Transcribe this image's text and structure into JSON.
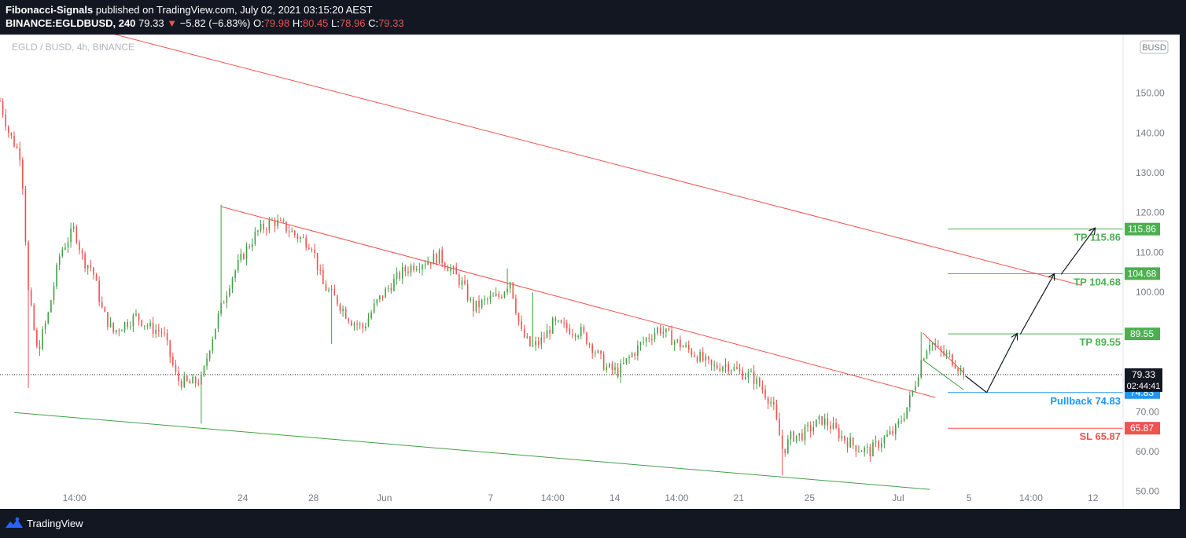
{
  "header": {
    "author": "Fibonacci-Signals",
    "published_text": "published on TradingView.com, July 02, 2021 03:15:20 AEST",
    "symbol": "BINANCE:EGLDBUSD, 240",
    "last": "79.33",
    "change_arrow": "▼",
    "change": "−5.82 (−6.83%)",
    "o_label": "O:",
    "o_value": "79.98",
    "h_label": "H:",
    "h_value": "80.45",
    "l_label": "L:",
    "l_value": "78.96",
    "c_label": "C:",
    "c_value": "79.33"
  },
  "footer": {
    "brand": "TradingView"
  },
  "chart_data": {
    "type": "candlestick",
    "title": "EGLD / BUSD, 4h, BINANCE",
    "currency_badge": "BUSD",
    "y_ticks": [
      "150.00",
      "140.00",
      "130.00",
      "120.00",
      "110.00",
      "100.00",
      "70.00",
      "60.00",
      "50.00"
    ],
    "y_tick_values": [
      150,
      140,
      130,
      120,
      110,
      100,
      70,
      60,
      50
    ],
    "ylim": [
      45.6,
      164.7
    ],
    "x_ticks": [
      "14:00",
      "24",
      "28",
      "Jun",
      "7",
      "14:00",
      "14",
      "14:00",
      "21",
      "25",
      "Jul",
      "5",
      "14:00",
      "12"
    ],
    "x_tick_pos": [
      14,
      23.5,
      27.5,
      31.5,
      37.5,
      41,
      44.5,
      48,
      51.5,
      55.5,
      60.5,
      64.5,
      68,
      71.5
    ],
    "x_range": [
      9.8,
      73.2
    ],
    "current_price": {
      "label": "79.33",
      "countdown": "02:44:41",
      "value": 79.33
    },
    "levels": [
      {
        "name": "TP 115.86",
        "value": 115.86,
        "badge": "115.86",
        "color": "#4caf50"
      },
      {
        "name": "TP 104.68",
        "value": 104.68,
        "badge": "104.68",
        "color": "#4caf50"
      },
      {
        "name": "TP 89.55",
        "value": 89.55,
        "badge": "89.55",
        "color": "#4caf50"
      },
      {
        "name": "Pullback 74.83",
        "value": 74.83,
        "badge": "74.83",
        "color": "#2196f3"
      },
      {
        "name": "SL 65.87",
        "value": 65.87,
        "badge": "65.87",
        "color": "#ef5350"
      }
    ],
    "up_color": "#26a69a",
    "up_color_chart": "#43a047",
    "down_color": "#ef5350",
    "series": [
      {
        "name": "EGLD/BUSD",
        "anchors": [
          [
            9.8,
            148
          ],
          [
            10.3,
            140
          ],
          [
            11.0,
            134
          ],
          [
            11.4,
            100
          ],
          [
            11.9,
            85
          ],
          [
            12.5,
            94
          ],
          [
            13.2,
            110
          ],
          [
            14.0,
            116
          ],
          [
            14.5,
            108
          ],
          [
            15.0,
            106
          ],
          [
            15.6,
            95
          ],
          [
            16.2,
            90
          ],
          [
            16.8,
            92
          ],
          [
            17.5,
            94
          ],
          [
            18.3,
            91
          ],
          [
            19.0,
            90
          ],
          [
            19.8,
            78
          ],
          [
            20.5,
            77
          ],
          [
            21.2,
            78
          ],
          [
            21.6,
            86
          ],
          [
            22.2,
            95
          ],
          [
            22.8,
            103
          ],
          [
            23.6,
            110
          ],
          [
            24.3,
            115
          ],
          [
            25.2,
            118
          ],
          [
            26.0,
            116
          ],
          [
            26.6,
            114
          ],
          [
            27.4,
            112
          ],
          [
            28.0,
            102
          ],
          [
            28.8,
            98
          ],
          [
            29.6,
            93
          ],
          [
            30.3,
            91
          ],
          [
            31.0,
            97
          ],
          [
            31.7,
            101
          ],
          [
            32.5,
            105
          ],
          [
            33.2,
            107
          ],
          [
            34.0,
            108
          ],
          [
            34.6,
            109
          ],
          [
            35.2,
            106
          ],
          [
            35.9,
            102
          ],
          [
            36.5,
            96
          ],
          [
            37.3,
            98
          ],
          [
            38.0,
            99
          ],
          [
            38.6,
            103
          ],
          [
            39.2,
            90
          ],
          [
            39.8,
            86
          ],
          [
            40.4,
            88
          ],
          [
            41.0,
            92
          ],
          [
            41.8,
            91
          ],
          [
            42.6,
            90
          ],
          [
            43.3,
            86
          ],
          [
            44.0,
            81
          ],
          [
            44.7,
            80
          ],
          [
            45.4,
            84
          ],
          [
            46.2,
            88
          ],
          [
            47.0,
            91
          ],
          [
            47.8,
            88
          ],
          [
            48.5,
            86
          ],
          [
            49.2,
            84
          ],
          [
            50.0,
            81
          ],
          [
            50.8,
            82
          ],
          [
            51.5,
            80
          ],
          [
            52.2,
            79
          ],
          [
            52.8,
            76
          ],
          [
            53.4,
            72
          ],
          [
            54.0,
            60
          ],
          [
            54.5,
            64
          ],
          [
            55.0,
            64
          ],
          [
            55.6,
            66
          ],
          [
            56.2,
            68
          ],
          [
            56.8,
            66
          ],
          [
            57.5,
            63
          ],
          [
            58.2,
            61
          ],
          [
            58.9,
            60
          ],
          [
            59.6,
            63
          ],
          [
            60.3,
            65
          ],
          [
            60.9,
            70
          ],
          [
            61.4,
            76
          ],
          [
            61.8,
            83
          ],
          [
            62.3,
            88
          ],
          [
            62.8,
            85
          ],
          [
            63.3,
            84
          ],
          [
            63.8,
            82
          ],
          [
            64.2,
            79.33
          ]
        ]
      }
    ],
    "trendlines": [
      {
        "from": [
          22.3,
          121.5
        ],
        "to": [
          62.6,
          73.6
        ],
        "color": "#ef5350"
      },
      {
        "from": [
          11.3,
          170.5
        ],
        "to": [
          70.8,
          101.8
        ],
        "color": "#ef5350"
      },
      {
        "from": [
          10.6,
          69.8
        ],
        "to": [
          62.3,
          50.5
        ],
        "color": "#43a047"
      },
      {
        "from": [
          61.9,
          89.8
        ],
        "to": [
          64.2,
          79.8
        ],
        "color": "#ef5350"
      },
      {
        "from": [
          61.9,
          83.0
        ],
        "to": [
          64.2,
          75.5
        ],
        "color": "#43a047"
      }
    ],
    "projection": [
      [
        64.3,
        79
      ],
      [
        65.5,
        74.83
      ],
      [
        67.2,
        89.5
      ],
      [
        67.4,
        89.5
      ],
      [
        69.3,
        104.5
      ],
      [
        69.7,
        104.5
      ],
      [
        71.6,
        116
      ]
    ]
  }
}
